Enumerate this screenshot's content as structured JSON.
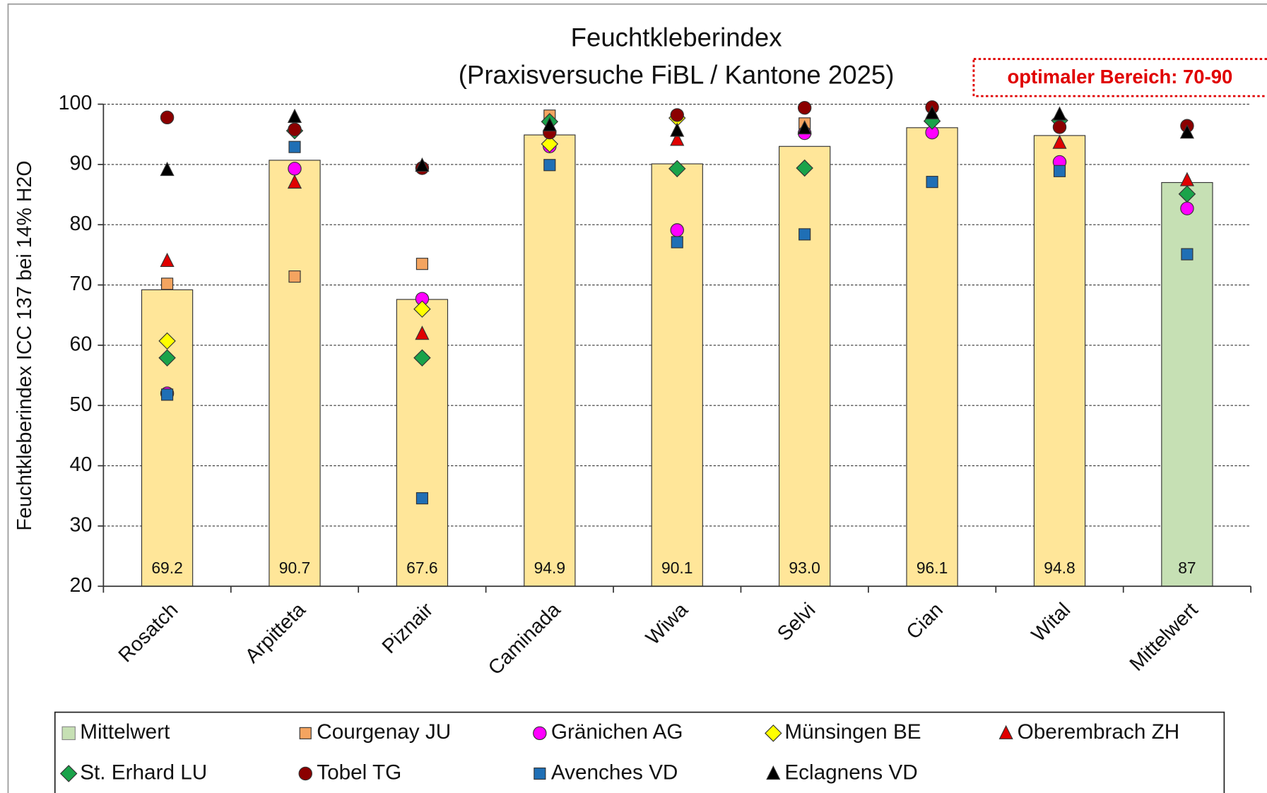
{
  "chart_data": {
    "type": "bar",
    "title": "Feuchtkleberindex",
    "subtitle": "(Praxisversuche FiBL / Kantone 2025)",
    "y_label": "Feuchtkleberindex ICC 137 bei 14% H2O",
    "annotation": "optimaler Bereich: 70-90",
    "categories": [
      "Rosatch",
      "Arpitteta",
      "Piznair",
      "Caminada",
      "Wiwa",
      "Selvi",
      "Cian",
      "Wital",
      "Mittelwert"
    ],
    "ylim": [
      20,
      100
    ],
    "yticks": [
      20,
      30,
      40,
      50,
      60,
      70,
      80,
      90,
      100
    ],
    "grid": true,
    "series": [
      {
        "name": "Mittelwert",
        "type": "bar",
        "color": "#c6e0b4",
        "bar_colors": [
          "#ffe699",
          "#ffe699",
          "#ffe699",
          "#ffe699",
          "#ffe699",
          "#ffe699",
          "#ffe699",
          "#ffe699",
          "#c6e0b4"
        ],
        "values": [
          69.2,
          90.7,
          67.6,
          94.9,
          90.1,
          93.0,
          96.1,
          94.8,
          87
        ],
        "value_labels": [
          "69.2",
          "90.7",
          "67.6",
          "94.9",
          "90.1",
          "93.0",
          "96.1",
          "94.8",
          "87"
        ]
      },
      {
        "name": "Courgenay JU",
        "type": "scatter",
        "marker": "square",
        "color": "#f4a460",
        "values": [
          70.2,
          71.4,
          73.5,
          98.1,
          null,
          96.8,
          null,
          null,
          null
        ]
      },
      {
        "name": "Gränichen AG",
        "type": "scatter",
        "marker": "circle",
        "color": "#ff00ff",
        "values": [
          52.0,
          89.3,
          67.7,
          93.0,
          79.1,
          95.2,
          95.3,
          90.4,
          82.7
        ]
      },
      {
        "name": "Münsingen BE",
        "type": "scatter",
        "marker": "diamond",
        "color": "#ffff00",
        "values": [
          60.7,
          null,
          66.0,
          93.4,
          97.7,
          null,
          null,
          null,
          null
        ]
      },
      {
        "name": "Oberembrach ZH",
        "type": "scatter",
        "marker": "triangle",
        "color": "#e00000",
        "values": [
          74.0,
          87.0,
          61.9,
          null,
          94.1,
          null,
          null,
          93.6,
          87.4
        ]
      },
      {
        "name": "St. Erhard LU",
        "type": "scatter",
        "marker": "diamond",
        "color": "#1aa34a",
        "values": [
          57.9,
          95.6,
          57.9,
          97.1,
          89.3,
          89.4,
          97.2,
          97.3,
          85.1
        ]
      },
      {
        "name": "Tobel TG",
        "type": "scatter",
        "marker": "circle",
        "color": "#8b0000",
        "values": [
          97.8,
          95.8,
          89.4,
          95.3,
          98.2,
          99.4,
          99.5,
          96.2,
          96.4
        ]
      },
      {
        "name": "Avenches VD",
        "type": "scatter",
        "marker": "square",
        "color": "#1f6fb5",
        "values": [
          51.8,
          92.9,
          34.6,
          89.9,
          77.1,
          78.4,
          87.1,
          88.9,
          75.1
        ]
      },
      {
        "name": "Eclagnens VD",
        "type": "scatter",
        "marker": "triangle",
        "color": "#000000",
        "values": [
          89.1,
          97.9,
          89.8,
          96.5,
          95.6,
          96.0,
          98.5,
          98.3,
          95.3
        ]
      }
    ]
  }
}
